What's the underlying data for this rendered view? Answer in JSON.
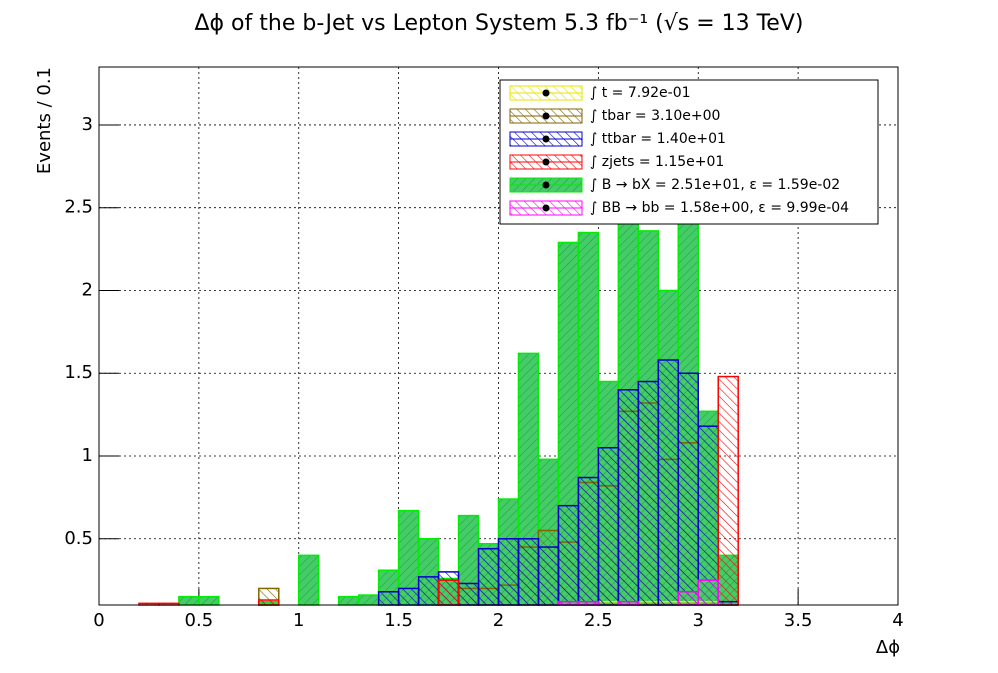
{
  "chart_data": {
    "type": "histogram",
    "title": "Δϕ of the b-Jet vs Lepton System 5.3 fb⁻¹ (√s = 13 TeV)",
    "x_label": "Δϕ",
    "y_label": "Events / 0.1",
    "bins": [
      0,
      0.1,
      0.2,
      0.3,
      0.4,
      0.5,
      0.6,
      0.7,
      0.8,
      0.9,
      1,
      1.1,
      1.2,
      1.3,
      1.4,
      1.5,
      1.6,
      1.7,
      1.8,
      1.9,
      2,
      2.1,
      2.2,
      2.3,
      2.4,
      2.5,
      2.6,
      2.7,
      2.8,
      2.9,
      3,
      3.1,
      3.2,
      3.3,
      3.4,
      3.5,
      3.6,
      3.7,
      3.8,
      3.9,
      4
    ],
    "xlim": [
      0,
      4
    ],
    "xticks": [
      0,
      0.5,
      1,
      1.5,
      2,
      2.5,
      3,
      3.5,
      4
    ],
    "ylim": [
      0.1,
      3.35
    ],
    "yticks": [
      0.5,
      1,
      1.5,
      2,
      2.5,
      3
    ],
    "grid": true,
    "series": [
      {
        "name": "∫ t = 7.92e-01",
        "color": "#e6e600",
        "values": [
          0,
          0,
          0,
          0,
          0,
          0,
          0,
          0,
          0,
          0,
          0,
          0,
          0,
          0,
          0,
          0,
          0,
          0,
          0,
          0,
          0,
          0,
          0,
          0,
          0,
          0.12,
          0.12,
          0.12,
          0.12,
          0.12,
          0.12,
          0,
          0,
          0,
          0,
          0,
          0,
          0,
          0,
          0
        ]
      },
      {
        "name": "∫ tbar = 3.10e+00",
        "color": "#806600",
        "values": [
          0,
          0,
          0,
          0,
          0,
          0,
          0,
          0,
          0.2,
          0,
          0,
          0,
          0,
          0,
          0,
          0,
          0,
          0,
          0.2,
          0.2,
          0.22,
          0.45,
          0.55,
          0.48,
          0.84,
          0.82,
          1.27,
          1.32,
          0.98,
          1.08,
          0,
          0,
          0,
          0,
          0,
          0,
          0,
          0,
          0,
          0
        ]
      },
      {
        "name": "∫ ttbar = 1.40e+01",
        "color": "#0000cc",
        "values": [
          0,
          0,
          0,
          0,
          0,
          0,
          0,
          0,
          0,
          0,
          0,
          0,
          0,
          0,
          0.18,
          0.2,
          0.27,
          0.3,
          0.23,
          0.44,
          0.5,
          0.5,
          0.45,
          0.7,
          0.87,
          1.05,
          1.4,
          1.45,
          1.58,
          1.5,
          1.18,
          0.12,
          0,
          0,
          0,
          0,
          0,
          0,
          0,
          0
        ]
      },
      {
        "name": "∫ zjets = 1.15e+01",
        "color": "#ff0000",
        "values": [
          0,
          0,
          0.11,
          0.11,
          0,
          0,
          0,
          0,
          0.13,
          0,
          0,
          0,
          0,
          0,
          0,
          0,
          0,
          0.25,
          0,
          0,
          0,
          0,
          0,
          0,
          0,
          0,
          0,
          0,
          0,
          0,
          0,
          1.48,
          0,
          0,
          0,
          0,
          0,
          0,
          0,
          0
        ]
      },
      {
        "name": "∫ B → bX = 2.51e+01, ε = 1.59e-02",
        "color": "#00ee00",
        "values": [
          0,
          0,
          0,
          0,
          0.15,
          0.15,
          0,
          0,
          0.12,
          0,
          0.4,
          0,
          0.15,
          0.16,
          0.31,
          0.67,
          0.5,
          0.26,
          0.64,
          0.47,
          0.74,
          1.62,
          0.98,
          2.29,
          2.35,
          1.45,
          2.75,
          2.36,
          2,
          2.6,
          1.27,
          0.4,
          0,
          0,
          0,
          0,
          0,
          0,
          0,
          0
        ]
      },
      {
        "name": "∫ BB → bb = 1.58e+00, ε = 9.99e-04",
        "color": "#ff00ff",
        "values": [
          0,
          0,
          0,
          0,
          0,
          0,
          0,
          0,
          0,
          0,
          0,
          0,
          0,
          0,
          0,
          0,
          0,
          0,
          0,
          0,
          0,
          0,
          0,
          0.12,
          0.12,
          0,
          0.12,
          0,
          0,
          0.18,
          0.25,
          0,
          0,
          0,
          0,
          0,
          0,
          0,
          0,
          0
        ]
      }
    ]
  }
}
